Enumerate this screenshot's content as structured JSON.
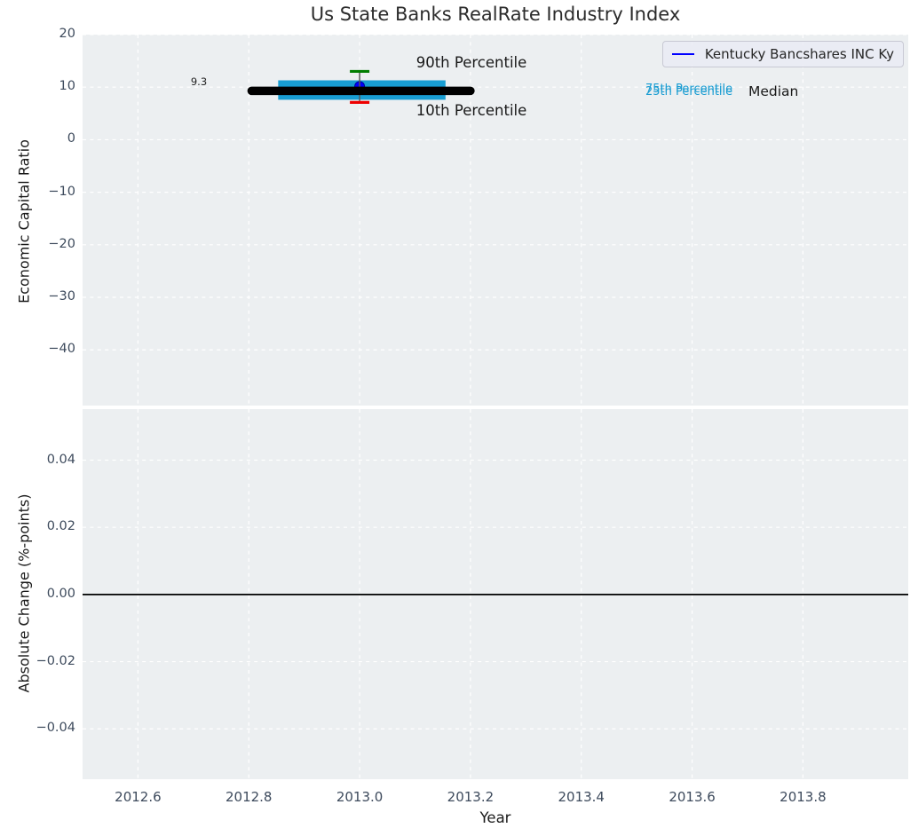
{
  "figure": {
    "title": "Us State Banks RealRate Industry Index",
    "background_color": "#ffffff",
    "plot_background_color": "#eceff1",
    "grid_color": "#ffffff"
  },
  "legend": {
    "label": "Kentucky Bancshares INC Ky",
    "line_color": "#0000ff",
    "position": "upper right"
  },
  "annotations": {
    "median_value_label": "9.3",
    "p90_label": "90th Percentile",
    "p10_label": "10th Percentile",
    "p75_label": "75th Percentile",
    "p25_label": "25th Percentile",
    "median_label": "Median"
  },
  "chart_data": [
    {
      "type": "line",
      "title": "Us State Banks RealRate Industry Index",
      "xlabel": "",
      "ylabel": "Economic Capital Ratio",
      "xlim": [
        2012.5,
        2013.99
      ],
      "ylim": [
        -50.6,
        20
      ],
      "xticks": [
        2012.6,
        2012.8,
        2013.0,
        2013.2,
        2013.4,
        2013.6,
        2013.8
      ],
      "xtick_labels": [],
      "yticks": [
        20,
        10,
        0,
        -10,
        -20,
        -30,
        -40
      ],
      "ytick_labels": [
        "20",
        "10",
        "0",
        "−10",
        "−20",
        "−30",
        "−40"
      ],
      "grid": true,
      "series": [
        {
          "name": "25th-75th percentile band",
          "type": "band",
          "color": "#189dd2",
          "x_start": 2012.853,
          "x_end": 2013.155,
          "y_low": 7.6,
          "y_high": 11.3
        },
        {
          "name": "Kentucky Bancshares INC Ky",
          "type": "scatter",
          "color": "#0000ff",
          "edge_color": "#000099",
          "x": [
            2013.0
          ],
          "y": [
            10.15
          ]
        },
        {
          "name": "10th-90th percentile whiskers",
          "type": "errorbar",
          "x": 2013.0,
          "y_low": 7.1,
          "y_high": 13.0,
          "line_color": "#5a5a5a",
          "cap_high_color": "#007d00",
          "cap_low_color": "#ee0000"
        },
        {
          "name": "Median",
          "type": "line",
          "color": "#000000",
          "linewidth": 9.5,
          "linecap": "round",
          "x": [
            2012.805,
            2013.2
          ],
          "y": [
            9.3,
            9.3
          ]
        }
      ]
    },
    {
      "type": "line",
      "title": "",
      "xlabel": "Year",
      "ylabel": "Absolute Change (%-points)",
      "xlim": [
        2012.5,
        2013.99
      ],
      "ylim": [
        -0.055,
        0.0552
      ],
      "xticks": [
        2012.6,
        2012.8,
        2013.0,
        2013.2,
        2013.4,
        2013.6,
        2013.8
      ],
      "xtick_labels": [
        "2012.6",
        "2012.8",
        "2013.0",
        "2013.2",
        "2013.4",
        "2013.6",
        "2013.8"
      ],
      "yticks": [
        0.04,
        0.02,
        0.0,
        -0.02,
        -0.04
      ],
      "ytick_labels": [
        "0.04",
        "0.02",
        "0.00",
        "−0.02",
        "−0.04"
      ],
      "grid": true,
      "series": [
        {
          "name": "zero line",
          "type": "hline",
          "y": 0,
          "color": "#000000",
          "linewidth": 1.8
        }
      ]
    }
  ]
}
